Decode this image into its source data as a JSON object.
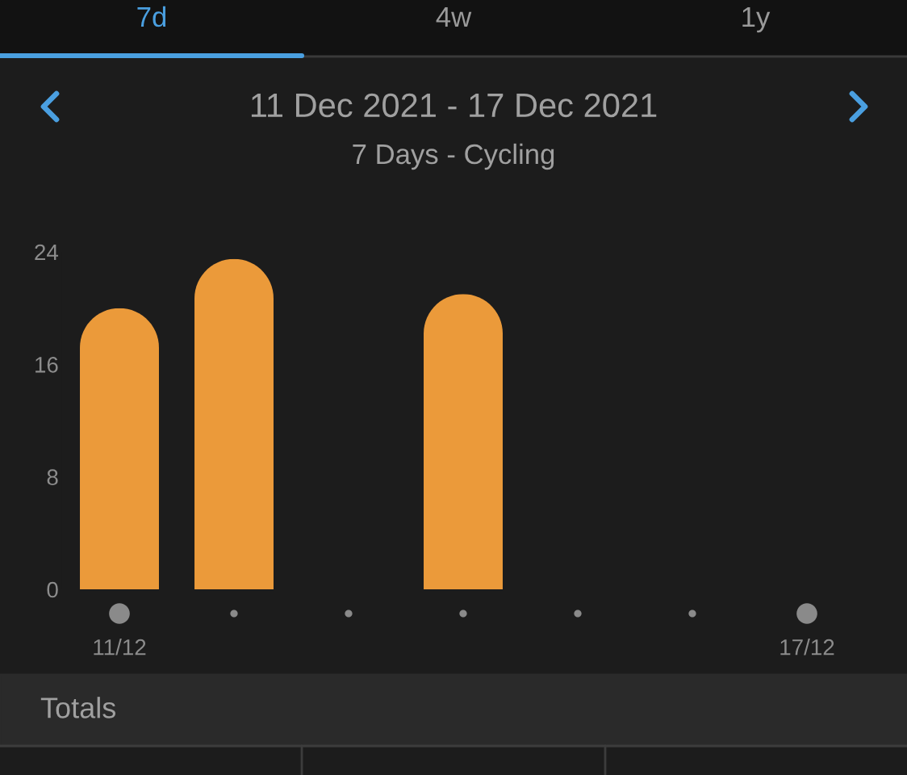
{
  "chart_data": {
    "type": "bar",
    "title": "11 Dec 2021 - 17 Dec 2021",
    "subtitle": "7 Days - Cycling",
    "categories": [
      "11/12",
      null,
      null,
      null,
      null,
      null,
      "17/12"
    ],
    "values": [
      20,
      23.5,
      null,
      21,
      null,
      null,
      null
    ],
    "color": "#eb9a3a",
    "ylim": [
      0,
      24
    ],
    "yticks": [
      0,
      8,
      16,
      24
    ],
    "grid": false,
    "annotations": [
      "7d",
      "4w",
      "1y",
      "Totals"
    ]
  }
}
